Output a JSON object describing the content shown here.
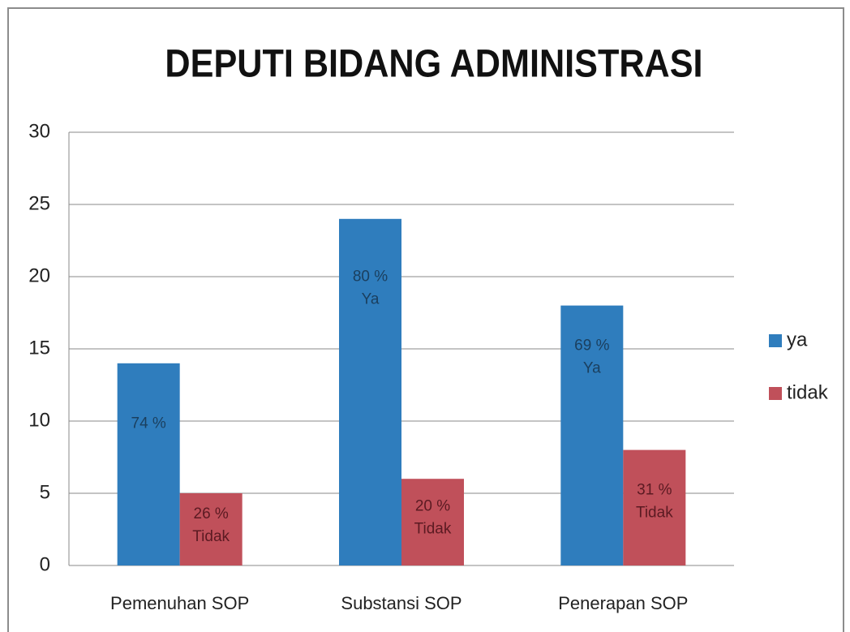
{
  "chart_data": {
    "type": "bar",
    "title": "DEPUTI BIDANG ADMINISTRASI",
    "categories": [
      "Pemenuhan SOP",
      "Substansi SOP",
      "Penerapan SOP"
    ],
    "series": [
      {
        "name": "ya",
        "color": "#2f7dbd",
        "values": [
          14,
          24,
          18
        ],
        "annotations": [
          [
            "74 %"
          ],
          [
            "80 %",
            "Ya"
          ],
          [
            "69 %",
            "Ya"
          ]
        ]
      },
      {
        "name": "tidak",
        "color": "#c0505a",
        "values": [
          5,
          6,
          8
        ],
        "annotations": [
          [
            "26 %",
            "Tidak"
          ],
          [
            "20 %",
            "Tidak"
          ],
          [
            "31 %",
            "Tidak"
          ]
        ]
      }
    ],
    "ylim": [
      0,
      30
    ],
    "yticks": [
      0,
      5,
      10,
      15,
      20,
      25,
      30
    ],
    "grid": true,
    "legend": "right"
  }
}
